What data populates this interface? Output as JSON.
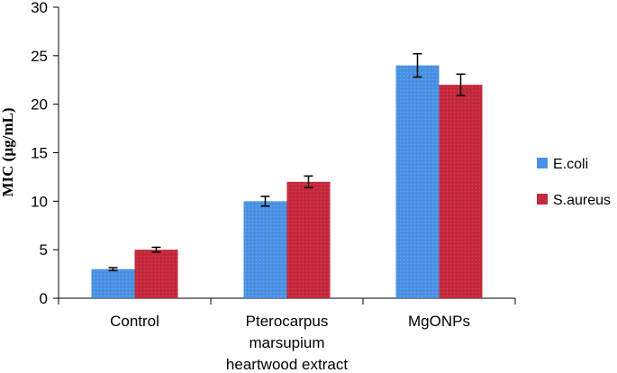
{
  "chart_data": {
    "type": "bar",
    "title": "",
    "xlabel": "",
    "ylabel": "MIC (µg/mL)",
    "ylim": [
      0,
      30
    ],
    "yticks": [
      0,
      5,
      10,
      15,
      20,
      25,
      30
    ],
    "categories": [
      [
        "Control"
      ],
      [
        "Pterocarpus",
        "marsupium",
        "heartwood extract"
      ],
      [
        "MgONPs"
      ]
    ],
    "series": [
      {
        "name": "E.coli",
        "color": "#4b92e4",
        "values": [
          3,
          10,
          24
        ],
        "errors": [
          0.15,
          0.5,
          1.2
        ]
      },
      {
        "name": "S.aureus",
        "color": "#c42a3c",
        "values": [
          5,
          12,
          22
        ],
        "errors": [
          0.25,
          0.6,
          1.1
        ]
      }
    ],
    "legend_position": "right",
    "grid": false
  }
}
